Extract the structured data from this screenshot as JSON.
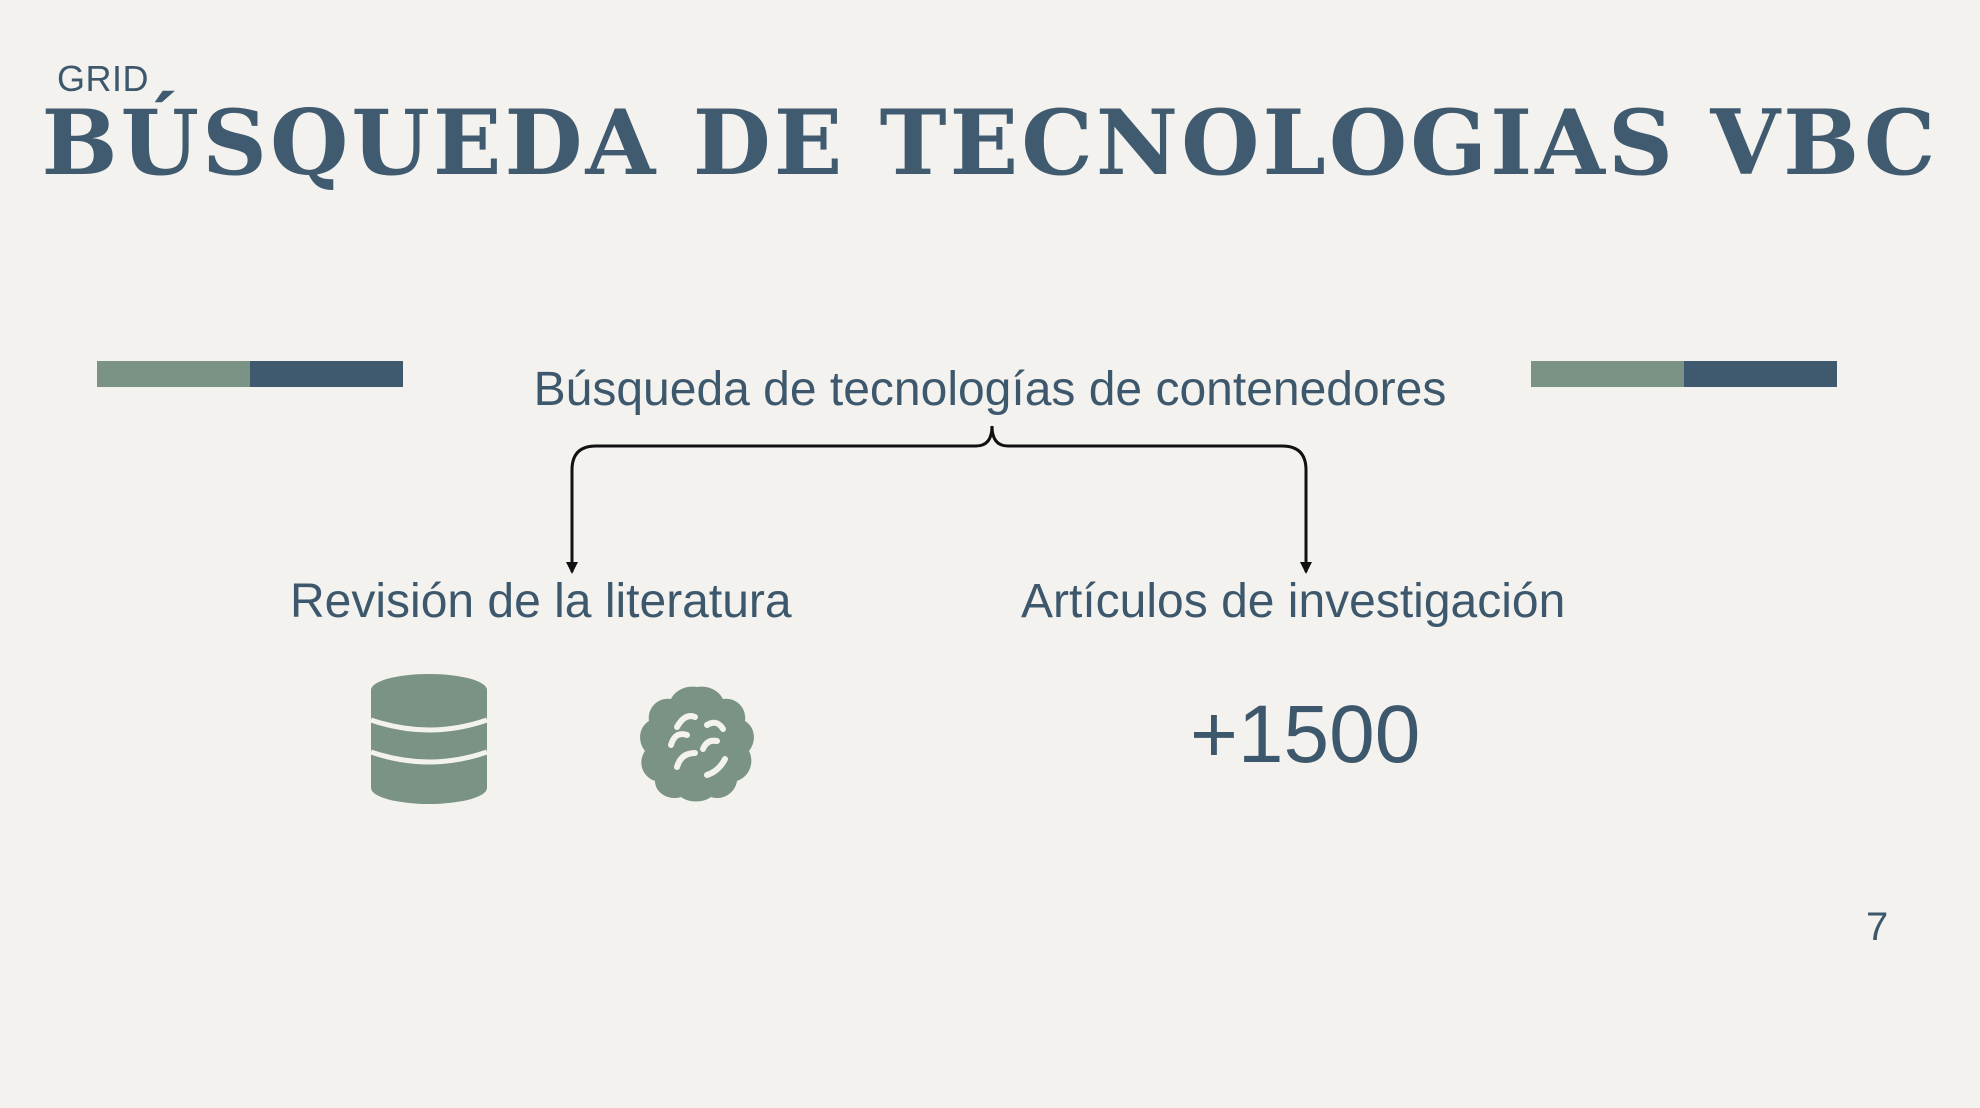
{
  "slide": {
    "brand": "GRID",
    "title": "BÚSQUEDA DE TECNOLOGIAS VBC",
    "subtitle": "Búsqueda de tecnologías de contenedores",
    "left_label": "Revisión de la literatura",
    "right_label": "Artículos de investigación",
    "count": "+1500",
    "page_number": "7"
  },
  "colors": {
    "background": "#f3f2ee",
    "text": "#3d586c",
    "accent_green": "#7a9385",
    "accent_navy": "#3f5a6e",
    "icon_green": "#7a9385",
    "connector": "#111111"
  },
  "icons": {
    "left_icon_1": "database-icon",
    "left_icon_2": "brain-icon"
  }
}
